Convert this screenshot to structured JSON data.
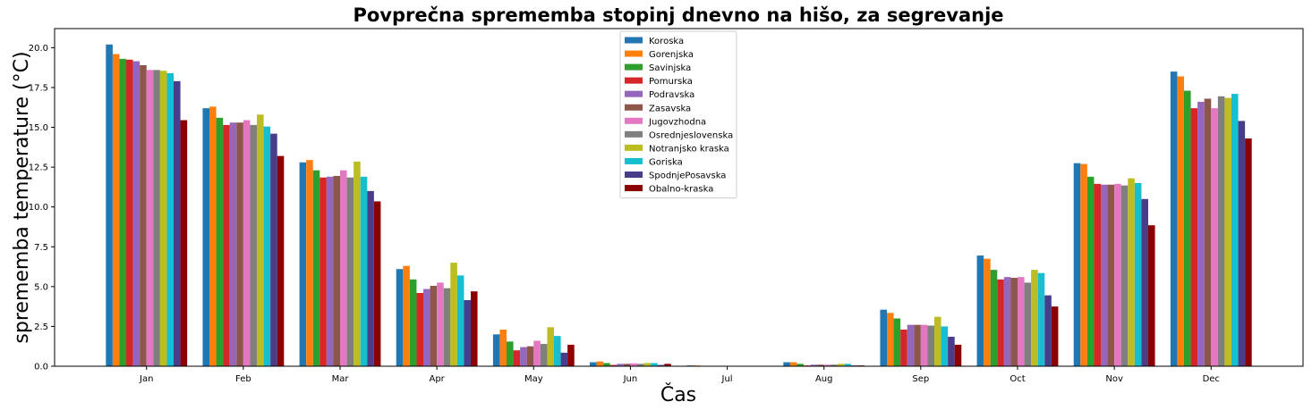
{
  "chart_data": {
    "type": "bar",
    "title": "Povprečna sprememba stopinj dnevno na hišo, za segrevanje",
    "xlabel": "Čas",
    "ylabel": "sprememba temperature (°C)",
    "ylim": [
      0,
      21.2
    ],
    "yticks": [
      0.0,
      2.5,
      5.0,
      7.5,
      10.0,
      12.5,
      15.0,
      17.5,
      20.0
    ],
    "ytick_labels": [
      "0.0",
      "2.5",
      "5.0",
      "7.5",
      "10.0",
      "12.5",
      "15.0",
      "17.5",
      "20.0"
    ],
    "grid": false,
    "legend_position": "top-center",
    "categories": [
      "Jan",
      "Feb",
      "Mar",
      "Apr",
      "May",
      "Jun",
      "Jul",
      "Aug",
      "Sep",
      "Oct",
      "Nov",
      "Dec"
    ],
    "series": [
      {
        "name": "Koroska",
        "color": "#1f77b4",
        "values": [
          20.2,
          16.2,
          12.8,
          6.1,
          2.0,
          0.25,
          0.05,
          0.25,
          3.55,
          6.95,
          12.75,
          18.5
        ]
      },
      {
        "name": "Gorenjska",
        "color": "#ff7f0e",
        "values": [
          19.6,
          16.3,
          12.95,
          6.3,
          2.3,
          0.3,
          0.05,
          0.25,
          3.35,
          6.75,
          12.7,
          18.2
        ]
      },
      {
        "name": "Savinjska",
        "color": "#2ca02c",
        "values": [
          19.3,
          15.6,
          12.3,
          5.45,
          1.55,
          0.2,
          0.02,
          0.15,
          3.0,
          6.05,
          11.9,
          17.3
        ]
      },
      {
        "name": "Pomurska",
        "color": "#d62728",
        "values": [
          19.25,
          15.15,
          11.85,
          4.6,
          1.0,
          0.08,
          0.0,
          0.05,
          2.3,
          5.45,
          11.45,
          16.2
        ]
      },
      {
        "name": "Podravska",
        "color": "#9467bd",
        "values": [
          19.15,
          15.3,
          11.9,
          4.85,
          1.2,
          0.15,
          0.0,
          0.1,
          2.6,
          5.6,
          11.4,
          16.6
        ]
      },
      {
        "name": "Zasavska",
        "color": "#8c564b",
        "values": [
          18.9,
          15.3,
          11.95,
          5.05,
          1.25,
          0.15,
          0.0,
          0.1,
          2.6,
          5.55,
          11.4,
          16.8
        ]
      },
      {
        "name": "Jugovzhodna",
        "color": "#e377c2",
        "values": [
          18.6,
          15.45,
          12.3,
          5.25,
          1.6,
          0.18,
          0.0,
          0.1,
          2.6,
          5.6,
          11.45,
          16.2
        ]
      },
      {
        "name": "Osrednjeslovenska",
        "color": "#7f7f7f",
        "values": [
          18.6,
          15.15,
          11.85,
          4.9,
          1.4,
          0.15,
          0.0,
          0.1,
          2.55,
          5.25,
          11.35,
          16.95
        ]
      },
      {
        "name": "Notranjsko kraska",
        "color": "#bcbd22",
        "values": [
          18.55,
          15.8,
          12.85,
          6.5,
          2.45,
          0.2,
          0.0,
          0.15,
          3.1,
          6.05,
          11.8,
          16.85
        ]
      },
      {
        "name": "Goriska",
        "color": "#17becf",
        "values": [
          18.4,
          15.05,
          11.9,
          5.7,
          1.9,
          0.2,
          0.03,
          0.15,
          2.5,
          5.85,
          11.5,
          17.1
        ]
      },
      {
        "name": "SpodnjePosavska",
        "color": "#483d8b",
        "values": [
          17.9,
          14.6,
          11.0,
          4.15,
          0.85,
          0.08,
          0.0,
          0.05,
          1.85,
          4.45,
          10.5,
          15.4
        ]
      },
      {
        "name": "Obalno-kraska",
        "color": "#8b0000",
        "values": [
          15.45,
          13.2,
          10.35,
          4.7,
          1.35,
          0.15,
          0.0,
          0.05,
          1.35,
          3.75,
          8.85,
          14.3
        ]
      }
    ]
  }
}
